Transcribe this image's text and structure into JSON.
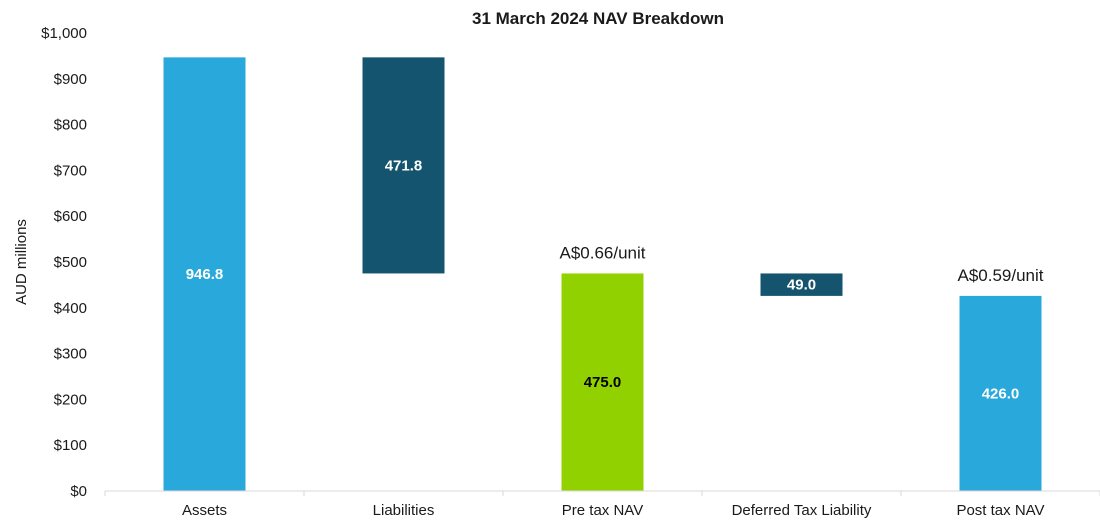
{
  "chart_data": {
    "type": "bar",
    "subtype": "waterfall",
    "title": "31 March 2024 NAV Breakdown",
    "ylabel": "AUD millions",
    "xlabel": "",
    "ylim": [
      0,
      1000
    ],
    "ytick_values": [
      0,
      100,
      200,
      300,
      400,
      500,
      600,
      700,
      800,
      900,
      1000
    ],
    "ytick_labels": [
      "$0",
      "$100",
      "$200",
      "$300",
      "$400",
      "$500",
      "$600",
      "$700",
      "$800",
      "$900",
      "$1,000"
    ],
    "grid": false,
    "legend": "none",
    "categories": [
      "Assets",
      "Liabilities",
      "Pre tax NAV",
      "Deferred Tax Liability",
      "Post tax NAV"
    ],
    "bars": [
      {
        "category": "Assets",
        "start": 0,
        "end": 946.8,
        "label": "946.8",
        "color": "#29A9DB",
        "label_color": "#ffffff"
      },
      {
        "category": "Liabilities",
        "start": 475.0,
        "end": 946.8,
        "label": "471.8",
        "color": "#15546E",
        "label_color": "#ffffff"
      },
      {
        "category": "Pre tax NAV",
        "start": 0,
        "end": 475.0,
        "label": "475.0",
        "color": "#92D100",
        "label_color": "#000000"
      },
      {
        "category": "Deferred Tax Liability",
        "start": 426.0,
        "end": 475.0,
        "label": "49.0",
        "color": "#15546E",
        "label_color": "#ffffff"
      },
      {
        "category": "Post tax NAV",
        "start": 0,
        "end": 426.0,
        "label": "426.0",
        "color": "#29A9DB",
        "label_color": "#ffffff"
      }
    ],
    "annotations": [
      {
        "category": "Pre tax NAV",
        "text": "A$0.66/unit",
        "value": 475.0
      },
      {
        "category": "Post tax NAV",
        "text": "A$0.59/unit",
        "value": 426.0
      }
    ]
  }
}
